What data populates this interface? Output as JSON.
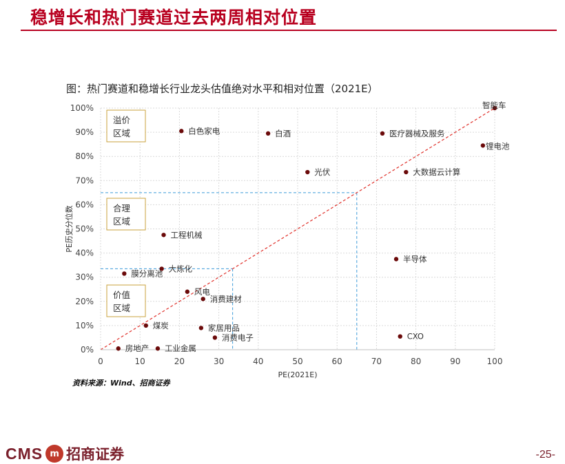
{
  "page": {
    "title": "稳增长和热门赛道过去两周相对位置",
    "source": "资料来源：Wind、招商证券",
    "page_number": "-25-",
    "brand_color": "#b8001f"
  },
  "logo": {
    "text": "CMS",
    "emblem": "m",
    "name_cn": "招商证券"
  },
  "chart_data": {
    "type": "scatter",
    "title": "图：热门赛道和稳增长行业龙头估值绝对水平和相对位置（2021E）",
    "xlabel": "PE(2021E)",
    "ylabel": "PE历史分位数",
    "xlim": [
      0,
      100
    ],
    "ylim": [
      0,
      100
    ],
    "x_ticks": [
      "0",
      "10",
      "20",
      "30",
      "40",
      "50",
      "60",
      "70",
      "80",
      "90",
      "100"
    ],
    "y_ticks": [
      "0%",
      "10%",
      "20%",
      "30%",
      "40%",
      "50%",
      "60%",
      "70%",
      "80%",
      "90%",
      "100%"
    ],
    "grid": true,
    "point_color": "#6b0a0a",
    "diagonal_color": "#e0302a",
    "guide_color": "#3b9ad9",
    "points": [
      {
        "label": "智能车",
        "x": 100,
        "y": 100
      },
      {
        "label": "白色家电",
        "x": 20.5,
        "y": 90.5
      },
      {
        "label": "白酒",
        "x": 42.5,
        "y": 89.5
      },
      {
        "label": "医疗器械及服务",
        "x": 71.5,
        "y": 89.5
      },
      {
        "label": "锂电池",
        "x": 97,
        "y": 84.5
      },
      {
        "label": "光伏",
        "x": 52.5,
        "y": 73.5
      },
      {
        "label": "大数据云计算",
        "x": 77.5,
        "y": 73.5
      },
      {
        "label": "工程机械",
        "x": 16,
        "y": 47.5
      },
      {
        "label": "半导体",
        "x": 75,
        "y": 37.5
      },
      {
        "label": "大炼化",
        "x": 15.5,
        "y": 33.5
      },
      {
        "label": "膜分离池",
        "x": 6,
        "y": 31.5
      },
      {
        "label": "风电",
        "x": 22,
        "y": 24
      },
      {
        "label": "消费建材",
        "x": 26,
        "y": 21
      },
      {
        "label": "煤炭",
        "x": 11.5,
        "y": 10
      },
      {
        "label": "家居用品",
        "x": 25.5,
        "y": 9
      },
      {
        "label": "消费电子",
        "x": 29,
        "y": 5
      },
      {
        "label": "CXO",
        "x": 76,
        "y": 5.5
      },
      {
        "label": "房地产",
        "x": 4.5,
        "y": 0.5
      },
      {
        "label": "工业金属",
        "x": 14.5,
        "y": 0.5
      }
    ],
    "guide_lines": [
      {
        "x": 65,
        "y": 65
      },
      {
        "x": 33.5,
        "y": 33.5
      }
    ],
    "regions": [
      {
        "line1": "溢价",
        "line2": "区域"
      },
      {
        "line1": "合理",
        "line2": "区域"
      },
      {
        "line1": "价值",
        "line2": "区域"
      }
    ]
  }
}
